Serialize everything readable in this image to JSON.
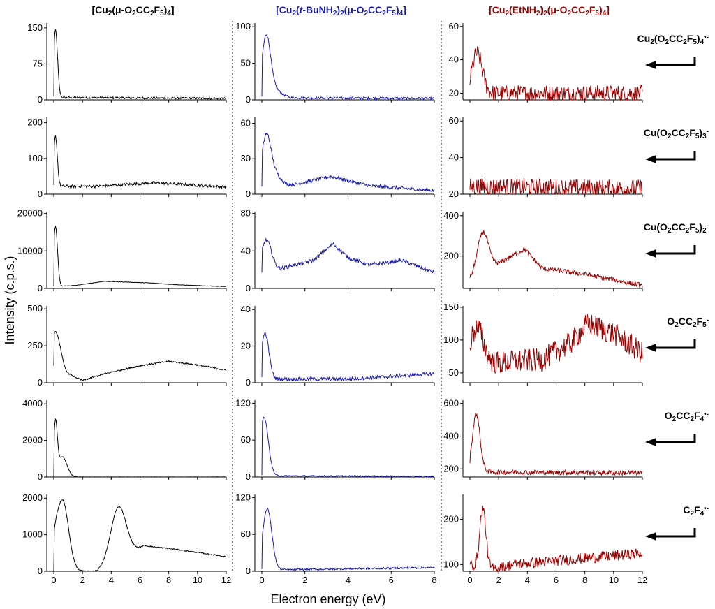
{
  "chart_data": {
    "type": "line",
    "ylabel": "Intensity (c.p.s.)",
    "xlabel": "Electron energy (eV)",
    "colors": {
      "col1": "#000000",
      "col2": "#1a1aaa",
      "col3": "#990000"
    },
    "columns": [
      {
        "title": "[Cu2(μ-O2CC2F5)4]",
        "title_rich": [
          [
            "[Cu",
            ""
          ],
          [
            "2",
            "sub"
          ],
          [
            "(μ-O",
            ""
          ],
          [
            "2",
            "sub"
          ],
          [
            "CC",
            ""
          ],
          [
            "2",
            "sub"
          ],
          [
            "F",
            ""
          ],
          [
            "5",
            "sub"
          ],
          [
            ")",
            ""
          ],
          [
            "4",
            "sub"
          ],
          [
            "]",
            ""
          ]
        ],
        "color": "#000000",
        "xlim": [
          0,
          12
        ],
        "xticks": [
          0,
          2,
          4,
          6,
          8,
          10,
          12
        ]
      },
      {
        "title": "[Cu2(t-BuNH2)2(μ-O2CC2F5)4]",
        "title_rich": [
          [
            "[Cu",
            ""
          ],
          [
            "2",
            "sub"
          ],
          [
            "(",
            ""
          ],
          [
            "t",
            "it"
          ],
          [
            "-BuNH",
            ""
          ],
          [
            "2",
            "sub"
          ],
          [
            ")",
            ""
          ],
          [
            "2",
            "sub"
          ],
          [
            "(μ-O",
            ""
          ],
          [
            "2",
            "sub"
          ],
          [
            "CC",
            ""
          ],
          [
            "2",
            "sub"
          ],
          [
            "F",
            ""
          ],
          [
            "5",
            "sub"
          ],
          [
            ")",
            ""
          ],
          [
            "4",
            "sub"
          ],
          [
            "]",
            ""
          ]
        ],
        "color": "#1a1aaa",
        "xlim": [
          0,
          8
        ],
        "xticks": [
          0,
          2,
          4,
          6,
          8
        ]
      },
      {
        "title": "[Cu2(EtNH2)2(μ-O2CC2F5)4]",
        "title_rich": [
          [
            "[Cu",
            ""
          ],
          [
            "2",
            "sub"
          ],
          [
            "(EtNH",
            ""
          ],
          [
            "2",
            "sub"
          ],
          [
            ")",
            ""
          ],
          [
            "2",
            "sub"
          ],
          [
            "(μ-O",
            ""
          ],
          [
            "2",
            "sub"
          ],
          [
            "CC",
            ""
          ],
          [
            "2",
            "sub"
          ],
          [
            "F",
            ""
          ],
          [
            "5",
            "sub"
          ],
          [
            ")",
            ""
          ],
          [
            "4",
            "sub"
          ],
          [
            "]",
            ""
          ]
        ],
        "color": "#990000",
        "xlim": [
          0,
          12
        ],
        "xticks": [
          0,
          2,
          4,
          6,
          8,
          10,
          12
        ]
      }
    ],
    "rows": [
      {
        "fragment": "Cu2(O2CC2F5)4•-",
        "fragment_rich": [
          [
            "Cu",
            ""
          ],
          [
            "2",
            "sub"
          ],
          [
            "(O",
            ""
          ],
          [
            "2",
            "sub"
          ],
          [
            "CC",
            ""
          ],
          [
            "2",
            "sub"
          ],
          [
            "F",
            ""
          ],
          [
            "5",
            "sub"
          ],
          [
            ")",
            ""
          ],
          [
            "4",
            "sub"
          ],
          [
            "•-",
            "sup"
          ]
        ],
        "panels": [
          {
            "ylim": [
              0,
              160
            ],
            "yticks": [
              0,
              75,
              150
            ],
            "peaks": [
              [
                0.12,
                140,
                0.2
              ]
            ],
            "base": [
              [
                0,
                5
              ],
              [
                12,
                3
              ]
            ],
            "noise": 2
          },
          {
            "ylim": [
              0,
              105
            ],
            "yticks": [
              0,
              50,
              100
            ],
            "peaks": [
              [
                0.2,
                78,
                0.28
              ],
              [
                0.5,
                12,
                0.5
              ]
            ],
            "base": [
              [
                0,
                3
              ],
              [
                8,
                2
              ]
            ],
            "noise": 1.5
          },
          {
            "ylim": [
              16,
              62
            ],
            "yticks": [
              20,
              40,
              60
            ],
            "peaks": [
              [
                0.5,
                24,
                0.5
              ]
            ],
            "base": [
              [
                0,
                20
              ],
              [
                12,
                20
              ]
            ],
            "noise": 5
          }
        ]
      },
      {
        "fragment": "Cu(O2CC2F5)3-",
        "fragment_rich": [
          [
            "Cu(O",
            ""
          ],
          [
            "2",
            "sub"
          ],
          [
            "CC",
            ""
          ],
          [
            "2",
            "sub"
          ],
          [
            "F",
            ""
          ],
          [
            "5",
            "sub"
          ],
          [
            ")",
            ""
          ],
          [
            "3",
            "sub"
          ],
          [
            "-",
            "sup"
          ]
        ],
        "panels": [
          {
            "ylim": [
              0,
              215
            ],
            "yticks": [
              0,
              100,
              200
            ],
            "peaks": [
              [
                0.12,
                140,
                0.18
              ]
            ],
            "base": [
              [
                0,
                22
              ],
              [
                3,
                22
              ],
              [
                7,
                32
              ],
              [
                12,
                20
              ]
            ],
            "noise": 4
          },
          {
            "ylim": [
              0,
              65
            ],
            "yticks": [
              0,
              30,
              60
            ],
            "peaks": [
              [
                0.2,
                42,
                0.3
              ],
              [
                0.6,
                10,
                0.4
              ]
            ],
            "base": [
              [
                0,
                5
              ],
              [
                1.5,
                8
              ],
              [
                3.2,
                15
              ],
              [
                5,
                7
              ],
              [
                8,
                3
              ]
            ],
            "noise": 1.5
          },
          {
            "ylim": [
              20,
              62
            ],
            "yticks": [
              20,
              40,
              60
            ],
            "peaks": [],
            "base": [
              [
                0,
                24
              ],
              [
                12,
                23
              ]
            ],
            "noise": 5
          }
        ]
      },
      {
        "fragment": "Cu(O2CC2F5)2-",
        "fragment_rich": [
          [
            "Cu(O",
            ""
          ],
          [
            "2",
            "sub"
          ],
          [
            "CC",
            ""
          ],
          [
            "2",
            "sub"
          ],
          [
            "F",
            ""
          ],
          [
            "5",
            "sub"
          ],
          [
            ")",
            ""
          ],
          [
            "2",
            "sub"
          ],
          [
            "-",
            "sup"
          ]
        ],
        "panels": [
          {
            "ylim": [
              0,
              20500
            ],
            "yticks": [
              0,
              10000,
              20000
            ],
            "peaks": [
              [
                0.12,
                16000,
                0.2
              ]
            ],
            "base": [
              [
                0,
                500
              ],
              [
                1.5,
                800
              ],
              [
                3.5,
                1900
              ],
              [
                6.5,
                1500
              ],
              [
                9,
                900
              ],
              [
                12,
                500
              ]
            ],
            "noise": 60
          },
          {
            "ylim": [
              0,
              82
            ],
            "yticks": [
              0,
              40,
              80
            ],
            "peaks": [
              [
                0.2,
                35,
                0.35
              ]
            ],
            "base": [
              [
                0,
                15
              ],
              [
                1.5,
                25
              ],
              [
                2.4,
                30
              ],
              [
                3.3,
                48
              ],
              [
                4,
                33
              ],
              [
                5,
                25
              ],
              [
                6.5,
                30
              ],
              [
                8,
                17
              ]
            ],
            "noise": 2
          },
          {
            "ylim": [
              40,
              420
            ],
            "yticks": [
              200,
              400
            ],
            "peaks": [
              [
                0.9,
                200,
                0.55
              ]
            ],
            "base": [
              [
                0,
                80
              ],
              [
                2.5,
                185
              ],
              [
                3.8,
                235
              ],
              [
                5,
                140
              ],
              [
                8,
                110
              ],
              [
                12,
                55
              ]
            ],
            "noise": 12
          }
        ]
      },
      {
        "fragment": "O2CC2F5-",
        "fragment_rich": [
          [
            "O",
            ""
          ],
          [
            "2",
            "sub"
          ],
          [
            "CC",
            ""
          ],
          [
            "2",
            "sub"
          ],
          [
            "F",
            ""
          ],
          [
            "5",
            "sub"
          ],
          [
            "-",
            "sup"
          ]
        ],
        "panels": [
          {
            "ylim": [
              0,
              520
            ],
            "yticks": [
              0,
              250,
              500
            ],
            "peaks": [
              [
                0.15,
                240,
                0.45
              ]
            ],
            "base": [
              [
                0,
                110
              ],
              [
                1,
                60
              ],
              [
                2,
                15
              ],
              [
                3.5,
                60
              ],
              [
                6,
                115
              ],
              [
                8,
                145
              ],
              [
                10,
                120
              ],
              [
                12,
                85
              ]
            ],
            "noise": 5
          },
          {
            "ylim": [
              0,
              42
            ],
            "yticks": [
              0,
              20,
              40
            ],
            "peaks": [
              [
                0.15,
                25,
                0.25
              ]
            ],
            "base": [
              [
                0,
                2
              ],
              [
                4,
                2
              ],
              [
                8,
                5
              ]
            ],
            "noise": 1
          },
          {
            "ylim": [
              35,
              152
            ],
            "yticks": [
              50,
              100,
              150
            ],
            "peaks": [
              [
                0.5,
                50,
                0.6
              ]
            ],
            "base": [
              [
                0,
                70
              ],
              [
                2,
                65
              ],
              [
                5,
                70
              ],
              [
                7,
                95
              ],
              [
                8.2,
                125
              ],
              [
                10,
                110
              ],
              [
                12,
                80
              ]
            ],
            "noise": 18
          }
        ]
      },
      {
        "fragment": "O2CC2F4•-",
        "fragment_rich": [
          [
            "O",
            ""
          ],
          [
            "2",
            "sub"
          ],
          [
            "CC",
            ""
          ],
          [
            "2",
            "sub"
          ],
          [
            "F",
            ""
          ],
          [
            "4",
            "sub"
          ],
          [
            "•-",
            "sup"
          ]
        ],
        "panels": [
          {
            "ylim": [
              0,
              4200
            ],
            "yticks": [
              0,
              2000,
              4000
            ],
            "peaks": [
              [
                0.12,
                2800,
                0.18
              ],
              [
                0.6,
                1100,
                0.45
              ]
            ],
            "base": [
              [
                0,
                0
              ],
              [
                12,
                0
              ]
            ],
            "noise": 10
          },
          {
            "ylim": [
              0,
              125
            ],
            "yticks": [
              0,
              60,
              120
            ],
            "peaks": [
              [
                0.1,
                95,
                0.28
              ]
            ],
            "base": [
              [
                0,
                2
              ],
              [
                8,
                1
              ]
            ],
            "noise": 1
          },
          {
            "ylim": [
              150,
              620
            ],
            "yticks": [
              200,
              400,
              600
            ],
            "peaks": [
              [
                0.45,
                330,
                0.35
              ]
            ],
            "base": [
              [
                0,
                220
              ],
              [
                1.5,
                180
              ],
              [
                12,
                175
              ]
            ],
            "noise": 15
          }
        ]
      },
      {
        "fragment": "C2F4•-",
        "fragment_rich": [
          [
            "C",
            ""
          ],
          [
            "2",
            "sub"
          ],
          [
            "F",
            ""
          ],
          [
            "4",
            "sub"
          ],
          [
            "•-",
            "sup"
          ]
        ],
        "panels": [
          {
            "ylim": [
              0,
              2100
            ],
            "yticks": [
              0,
              1000,
              2000
            ],
            "peaks": [
              [
                0.6,
                1950,
                0.6
              ],
              [
                4.5,
                1450,
                0.75
              ],
              [
                0.1,
                350,
                0.25
              ]
            ],
            "base": [
              [
                0,
                0
              ],
              [
                3,
                0
              ],
              [
                6.3,
                700
              ],
              [
                8.5,
                600
              ],
              [
                12,
                400
              ]
            ],
            "noise": 15
          },
          {
            "ylim": [
              0,
              125
            ],
            "yticks": [
              0,
              60,
              120
            ],
            "peaks": [
              [
                0.25,
                100,
                0.3
              ]
            ],
            "base": [
              [
                0,
                2
              ],
              [
                8,
                6
              ]
            ],
            "noise": 1.5
          },
          {
            "ylim": [
              85,
              255
            ],
            "yticks": [
              100,
              200
            ],
            "peaks": [
              [
                0.9,
                130,
                0.3
              ]
            ],
            "base": [
              [
                0,
                100
              ],
              [
                1.5,
                90
              ],
              [
                3,
                100
              ],
              [
                12,
                125
              ]
            ],
            "noise": 12
          }
        ]
      }
    ]
  }
}
